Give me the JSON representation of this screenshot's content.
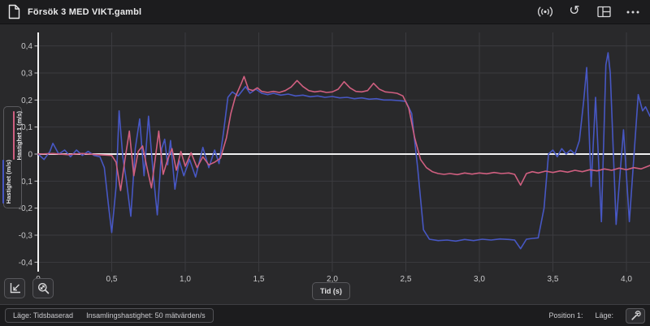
{
  "window": {
    "title": "Försök 3 MED VIKT.gambl"
  },
  "topbar": {
    "icons": [
      "document-icon",
      "sensor-signal-icon",
      "reset-icon",
      "layout-icon",
      "more-options-icon"
    ]
  },
  "chart_data": {
    "type": "line",
    "xlabel": "Tid (s)",
    "ylabels": [
      "Hastighet (m/s)",
      "Hastighet 1 (m/s)"
    ],
    "xlim": [
      0,
      4.17
    ],
    "ylim": [
      -0.45,
      0.45
    ],
    "grid": true,
    "x_ticks": {
      "values": [
        0,
        0.5,
        1.0,
        1.5,
        2.0,
        2.5,
        3.0,
        3.5,
        4.0
      ],
      "labels": [
        "0",
        "0,5",
        "1,0",
        "1,5",
        "2,0",
        "2,5",
        "3,0",
        "3,5",
        "4,0"
      ]
    },
    "y_ticks": {
      "values": [
        0.4,
        0.3,
        0.2,
        0.1,
        0,
        -0.1,
        -0.2,
        -0.3,
        -0.4
      ],
      "labels": [
        "0,4",
        "0,3",
        "0,2",
        "0,1",
        "0",
        "-0,1",
        "-0,2",
        "-0,3",
        "-0,4"
      ]
    },
    "series": [
      {
        "name": "Hastighet (m/s)",
        "color": "#4757c3",
        "points": [
          [
            0,
            0
          ],
          [
            0.04,
            -0.02
          ],
          [
            0.08,
            0.01
          ],
          [
            0.1,
            0.04
          ],
          [
            0.14,
            0
          ],
          [
            0.18,
            0.015
          ],
          [
            0.22,
            -0.01
          ],
          [
            0.26,
            0.015
          ],
          [
            0.3,
            -0.005
          ],
          [
            0.34,
            0.01
          ],
          [
            0.38,
            -0.005
          ],
          [
            0.42,
            -0.01
          ],
          [
            0.45,
            -0.05
          ],
          [
            0.48,
            -0.2
          ],
          [
            0.5,
            -0.29
          ],
          [
            0.53,
            -0.12
          ],
          [
            0.55,
            0.16
          ],
          [
            0.575,
            -0.01
          ],
          [
            0.6,
            -0.1
          ],
          [
            0.63,
            -0.23
          ],
          [
            0.66,
            0.02
          ],
          [
            0.69,
            0.13
          ],
          [
            0.72,
            -0.08
          ],
          [
            0.75,
            0.14
          ],
          [
            0.78,
            -0.06
          ],
          [
            0.81,
            -0.225
          ],
          [
            0.84,
            0.02
          ],
          [
            0.86,
            0.055
          ],
          [
            0.88,
            -0.04
          ],
          [
            0.9,
            0.05
          ],
          [
            0.93,
            -0.13
          ],
          [
            0.96,
            -0.025
          ],
          [
            0.99,
            -0.08
          ],
          [
            1.03,
            -0.02
          ],
          [
            1.07,
            -0.085
          ],
          [
            1.12,
            0.025
          ],
          [
            1.16,
            -0.05
          ],
          [
            1.2,
            0.015
          ],
          [
            1.23,
            -0.035
          ],
          [
            1.26,
            0.08
          ],
          [
            1.29,
            0.21
          ],
          [
            1.32,
            0.23
          ],
          [
            1.36,
            0.215
          ],
          [
            1.41,
            0.25
          ],
          [
            1.44,
            0.225
          ],
          [
            1.48,
            0.24
          ],
          [
            1.52,
            0.225
          ],
          [
            1.56,
            0.22
          ],
          [
            1.6,
            0.225
          ],
          [
            1.65,
            0.218
          ],
          [
            1.7,
            0.222
          ],
          [
            1.75,
            0.215
          ],
          [
            1.8,
            0.218
          ],
          [
            1.85,
            0.212
          ],
          [
            1.9,
            0.215
          ],
          [
            1.95,
            0.21
          ],
          [
            2,
            0.213
          ],
          [
            2.05,
            0.208
          ],
          [
            2.1,
            0.21
          ],
          [
            2.15,
            0.205
          ],
          [
            2.2,
            0.208
          ],
          [
            2.25,
            0.203
          ],
          [
            2.3,
            0.205
          ],
          [
            2.35,
            0.2
          ],
          [
            2.4,
            0.2
          ],
          [
            2.45,
            0.198
          ],
          [
            2.5,
            0.195
          ],
          [
            2.54,
            0.15
          ],
          [
            2.58,
            -0.05
          ],
          [
            2.62,
            -0.28
          ],
          [
            2.66,
            -0.315
          ],
          [
            2.72,
            -0.32
          ],
          [
            2.78,
            -0.318
          ],
          [
            2.84,
            -0.322
          ],
          [
            2.9,
            -0.316
          ],
          [
            2.96,
            -0.32
          ],
          [
            3.02,
            -0.315
          ],
          [
            3.08,
            -0.318
          ],
          [
            3.14,
            -0.314
          ],
          [
            3.2,
            -0.316
          ],
          [
            3.24,
            -0.318
          ],
          [
            3.28,
            -0.35
          ],
          [
            3.32,
            -0.315
          ],
          [
            3.36,
            -0.312
          ],
          [
            3.4,
            -0.31
          ],
          [
            3.44,
            -0.2
          ],
          [
            3.47,
            0
          ],
          [
            3.5,
            0.015
          ],
          [
            3.53,
            -0.01
          ],
          [
            3.56,
            0.02
          ],
          [
            3.59,
            0
          ],
          [
            3.62,
            0.015
          ],
          [
            3.65,
            0
          ],
          [
            3.68,
            0.05
          ],
          [
            3.71,
            0.2
          ],
          [
            3.73,
            0.32
          ],
          [
            3.76,
            -0.12
          ],
          [
            3.79,
            0.21
          ],
          [
            3.83,
            -0.25
          ],
          [
            3.86,
            0.33
          ],
          [
            3.875,
            0.375
          ],
          [
            3.89,
            0.3
          ],
          [
            3.93,
            -0.26
          ],
          [
            3.98,
            0.09
          ],
          [
            4.02,
            -0.25
          ],
          [
            4.08,
            0.22
          ],
          [
            4.11,
            0.16
          ],
          [
            4.13,
            0.175
          ],
          [
            4.16,
            0.14
          ]
        ]
      },
      {
        "name": "Hastighet 1 (m/s)",
        "color": "#d05f80",
        "points": [
          [
            0,
            0
          ],
          [
            0.1,
            0.002
          ],
          [
            0.2,
            -0.002
          ],
          [
            0.3,
            0.002
          ],
          [
            0.4,
            -0.002
          ],
          [
            0.5,
            -0.005
          ],
          [
            0.53,
            -0.03
          ],
          [
            0.56,
            -0.135
          ],
          [
            0.59,
            -0.02
          ],
          [
            0.62,
            0.085
          ],
          [
            0.65,
            -0.08
          ],
          [
            0.68,
            0.01
          ],
          [
            0.71,
            0.03
          ],
          [
            0.74,
            -0.05
          ],
          [
            0.77,
            -0.125
          ],
          [
            0.8,
            0
          ],
          [
            0.82,
            0.085
          ],
          [
            0.85,
            -0.075
          ],
          [
            0.88,
            -0.02
          ],
          [
            0.91,
            0.02
          ],
          [
            0.94,
            -0.06
          ],
          [
            0.97,
            0.01
          ],
          [
            1,
            -0.045
          ],
          [
            1.04,
            0.005
          ],
          [
            1.08,
            -0.05
          ],
          [
            1.12,
            -0.01
          ],
          [
            1.16,
            -0.04
          ],
          [
            1.2,
            -0.03
          ],
          [
            1.24,
            -0.015
          ],
          [
            1.28,
            0.06
          ],
          [
            1.31,
            0.15
          ],
          [
            1.34,
            0.21
          ],
          [
            1.38,
            0.26
          ],
          [
            1.4,
            0.287
          ],
          [
            1.43,
            0.24
          ],
          [
            1.46,
            0.235
          ],
          [
            1.49,
            0.245
          ],
          [
            1.52,
            0.232
          ],
          [
            1.56,
            0.228
          ],
          [
            1.6,
            0.232
          ],
          [
            1.64,
            0.228
          ],
          [
            1.68,
            0.235
          ],
          [
            1.72,
            0.248
          ],
          [
            1.76,
            0.272
          ],
          [
            1.8,
            0.25
          ],
          [
            1.84,
            0.235
          ],
          [
            1.88,
            0.23
          ],
          [
            1.92,
            0.233
          ],
          [
            1.96,
            0.228
          ],
          [
            2,
            0.23
          ],
          [
            2.04,
            0.24
          ],
          [
            2.08,
            0.268
          ],
          [
            2.12,
            0.245
          ],
          [
            2.16,
            0.232
          ],
          [
            2.2,
            0.23
          ],
          [
            2.24,
            0.235
          ],
          [
            2.28,
            0.262
          ],
          [
            2.32,
            0.24
          ],
          [
            2.36,
            0.23
          ],
          [
            2.4,
            0.228
          ],
          [
            2.44,
            0.225
          ],
          [
            2.48,
            0.215
          ],
          [
            2.52,
            0.17
          ],
          [
            2.56,
            0.06
          ],
          [
            2.6,
            -0.02
          ],
          [
            2.64,
            -0.05
          ],
          [
            2.68,
            -0.065
          ],
          [
            2.72,
            -0.072
          ],
          [
            2.76,
            -0.075
          ],
          [
            2.8,
            -0.072
          ],
          [
            2.85,
            -0.076
          ],
          [
            2.9,
            -0.07
          ],
          [
            2.95,
            -0.074
          ],
          [
            3,
            -0.07
          ],
          [
            3.05,
            -0.073
          ],
          [
            3.1,
            -0.068
          ],
          [
            3.15,
            -0.072
          ],
          [
            3.2,
            -0.07
          ],
          [
            3.24,
            -0.075
          ],
          [
            3.28,
            -0.115
          ],
          [
            3.32,
            -0.072
          ],
          [
            3.36,
            -0.065
          ],
          [
            3.4,
            -0.07
          ],
          [
            3.45,
            -0.063
          ],
          [
            3.5,
            -0.068
          ],
          [
            3.55,
            -0.062
          ],
          [
            3.6,
            -0.067
          ],
          [
            3.65,
            -0.06
          ],
          [
            3.7,
            -0.065
          ],
          [
            3.75,
            -0.058
          ],
          [
            3.8,
            -0.062
          ],
          [
            3.85,
            -0.055
          ],
          [
            3.9,
            -0.06
          ],
          [
            3.95,
            -0.052
          ],
          [
            4,
            -0.058
          ],
          [
            4.05,
            -0.05
          ],
          [
            4.1,
            -0.055
          ],
          [
            4.16,
            -0.042
          ]
        ]
      }
    ],
    "colors": {
      "background": "#29292b",
      "grid": "#3b3b3f",
      "axis": "#f0f0f0",
      "tick_text": "#c9c9cb"
    }
  },
  "statusbar": {
    "mode_label": "Läge: Tidsbaserad",
    "rate_label": "Insamlingshastighet: 50 mätvärden/s",
    "position_label": "Position 1:",
    "lage_label": "Läge:"
  }
}
